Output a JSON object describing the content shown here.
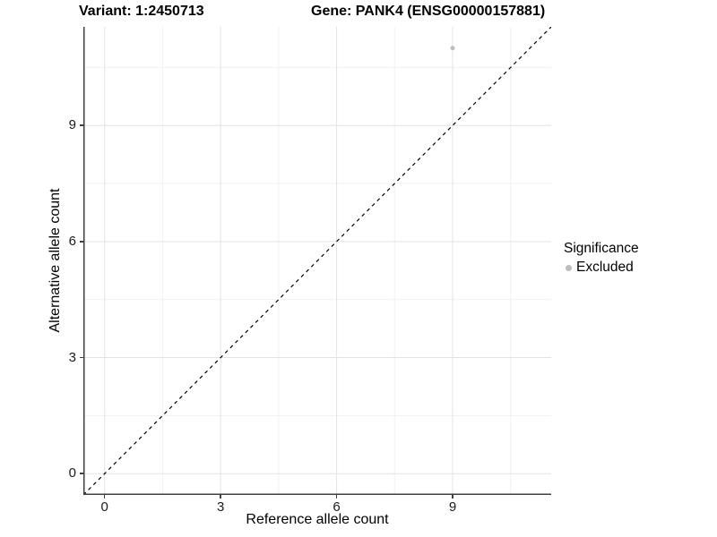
{
  "chart_data": {
    "type": "scatter",
    "title_left": "Variant: 1:2450713",
    "title_right": "Gene: PANK4 (ENSG00000157881)",
    "xlabel": "Reference allele count",
    "ylabel": "Alternative allele count",
    "xlim": [
      -0.55,
      11.55
    ],
    "ylim": [
      -0.55,
      11.55
    ],
    "x_ticks": [
      0,
      3,
      6,
      9
    ],
    "y_ticks": [
      0,
      3,
      6,
      9
    ],
    "x_minor_ticks": [
      1.5,
      4.5,
      7.5,
      10.5
    ],
    "y_minor_ticks": [
      1.5,
      4.5,
      7.5,
      10.5
    ],
    "grid": true,
    "series": [
      {
        "name": "Excluded",
        "color": "#bdbdbd",
        "points": [
          {
            "x": 9,
            "y": 11
          }
        ]
      }
    ],
    "reference_line": {
      "kind": "identity",
      "slope": 1,
      "intercept": 0,
      "style": "dashed",
      "color": "#000000"
    },
    "legend": {
      "title": "Significance",
      "position": "right",
      "items": [
        {
          "label": "Excluded",
          "color": "#bdbdbd"
        }
      ]
    }
  },
  "colors": {
    "background": "#ffffff",
    "grid_major": "#e3e3e3",
    "grid_minor": "#f1f1f1",
    "axis_line": "#404040",
    "tick_label": "#1a1a1a",
    "point": "#bdbdbd"
  }
}
